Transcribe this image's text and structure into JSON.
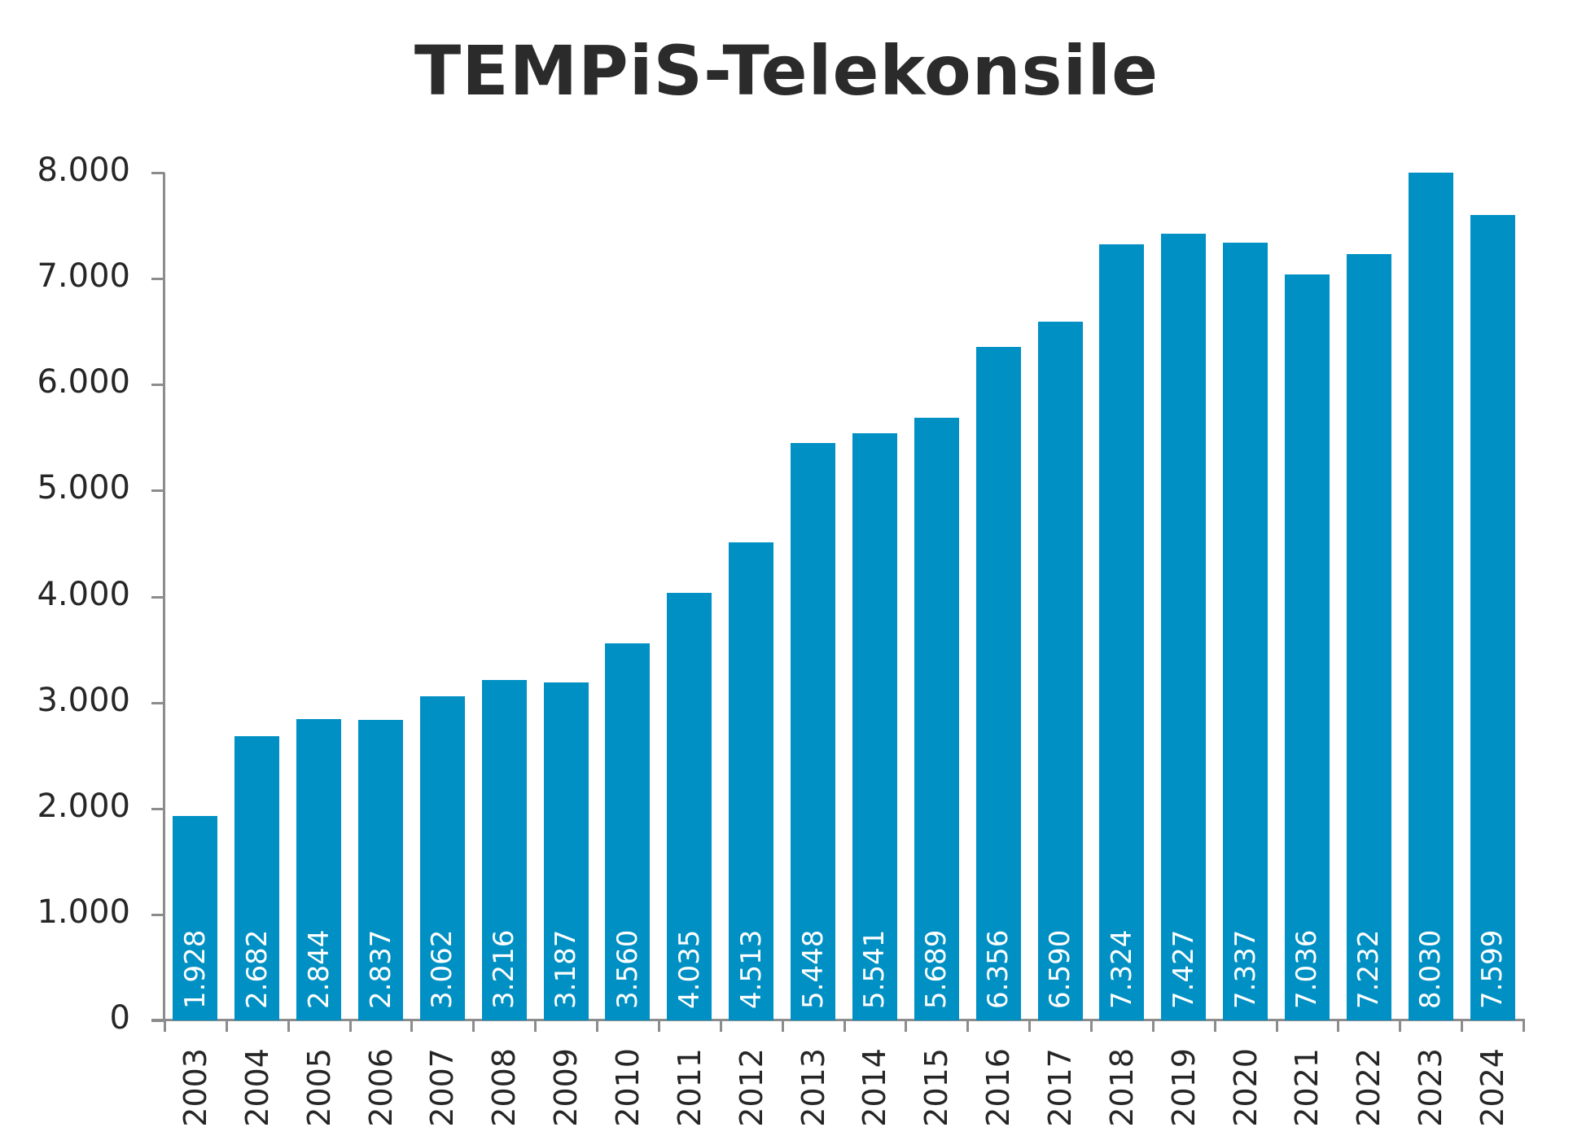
{
  "title": "TEMPiS-Telekonsile",
  "colors": {
    "bar": "#0090C4",
    "axis": "#8c8c8c",
    "text": "#262626",
    "bar_label": "#ffffff"
  },
  "y_axis": {
    "ticks": [
      "0",
      "1.000",
      "2.000",
      "3.000",
      "4.000",
      "5.000",
      "6.000",
      "7.000",
      "8.000"
    ]
  },
  "chart_data": {
    "type": "bar",
    "title": "TEMPiS-Telekonsile",
    "xlabel": "",
    "ylabel": "",
    "ylim": [
      0,
      8000
    ],
    "grid": false,
    "legend": null,
    "categories": [
      "2003",
      "2004",
      "2005",
      "2006",
      "2007",
      "2008",
      "2009",
      "2010",
      "2011",
      "2012",
      "2013",
      "2014",
      "2015",
      "2016",
      "2017",
      "2018",
      "2019",
      "2020",
      "2021",
      "2022",
      "2023",
      "2024"
    ],
    "values": [
      1928,
      2682,
      2844,
      2837,
      3062,
      3216,
      3187,
      3560,
      4035,
      4513,
      5448,
      5541,
      5689,
      6356,
      6590,
      7324,
      7427,
      7337,
      7036,
      7232,
      8030,
      7599
    ],
    "value_labels": [
      "1.928",
      "2.682",
      "2.844",
      "2.837",
      "3.062",
      "3.216",
      "3.187",
      "3.560",
      "4.035",
      "4.513",
      "5.448",
      "5.541",
      "5.689",
      "6.356",
      "6.590",
      "7.324",
      "7.427",
      "7.337",
      "7.036",
      "7.232",
      "8.030",
      "7.599"
    ],
    "y_ticks": [
      0,
      1000,
      2000,
      3000,
      4000,
      5000,
      6000,
      7000,
      8000
    ],
    "y_tick_labels": [
      "0",
      "1.000",
      "2.000",
      "3.000",
      "4.000",
      "5.000",
      "6.000",
      "7.000",
      "8.000"
    ]
  }
}
